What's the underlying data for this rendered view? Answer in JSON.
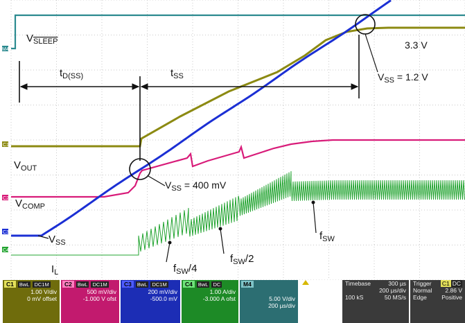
{
  "labels": {
    "vsleep": "V",
    "vsleep_sub": "SLEEP",
    "td_main": "t",
    "td_sub": "D(SS)",
    "tss_main": "t",
    "tss_sub": "SS",
    "v33": "3.3 V",
    "vss12_main": "V",
    "vss12_sub": "SS",
    "vss12_val": " = 1.2 V",
    "vout_main": "V",
    "vout_sub": "OUT",
    "vss400_main": "V",
    "vss400_sub": "SS",
    "vss400_val": " = 400 mV",
    "vcomp_main": "V",
    "vcomp_sub": "COMP",
    "vss_main": "V",
    "vss_sub": "SS",
    "il_main": "I",
    "il_sub": "L",
    "fsw4_main": "f",
    "fsw4_sub": "SW",
    "fsw4_div": "/4",
    "fsw2_main": "f",
    "fsw2_sub": "SW",
    "fsw2_div": "/2",
    "fsw_main": "f",
    "fsw_sub": "SW"
  },
  "channel_markers": {
    "m4": "M4",
    "c1": "C1",
    "c2": "C2",
    "c3": "C3",
    "c4": "C4"
  },
  "status_bar": {
    "c1": {
      "num": "C1",
      "tag1": "BwL",
      "tag2": "DC1M",
      "scale": "1.00 V/div",
      "offset": "0 mV offset",
      "color": "#7a7a10"
    },
    "c2": {
      "num": "C2",
      "tag1": "BwL",
      "tag2": "DC1M",
      "scale": "500 mV/div",
      "offset": "-1.000 V ofst",
      "color": "#d11a75"
    },
    "c3": {
      "num": "C3",
      "tag1": "BwL",
      "tag2": "DC1M",
      "scale": "200 mV/div",
      "offset": "-500.0 mV",
      "color": "#1a2bd1"
    },
    "c4": {
      "num": "C4",
      "tag1": "BwL",
      "tag2": "DC",
      "scale": "1.00 A/div",
      "offset": "-3.000 A ofst",
      "color": "#1c9b28"
    },
    "m4": {
      "num": "M4",
      "scale": "5.00 V/div",
      "offset": "200 µs/div",
      "color": "#2b7d82"
    },
    "timebase": {
      "label": "Timebase",
      "value": "300 µs",
      "div": "200 µs/div",
      "samples": "100 kS",
      "rate": "50 MS/s"
    },
    "trigger": {
      "label": "Trigger",
      "tag": "C1",
      "tag2": "DC",
      "mode": "Normal",
      "level": "2.86 V",
      "type": "Edge",
      "slope": "Positive"
    }
  },
  "colors": {
    "vsleep": "#2b8a8f",
    "vout": "#8c8a12",
    "vcomp": "#d81b79",
    "vss": "#1b2fd4",
    "il": "#23a431",
    "grid": "#c8c8c8"
  }
}
